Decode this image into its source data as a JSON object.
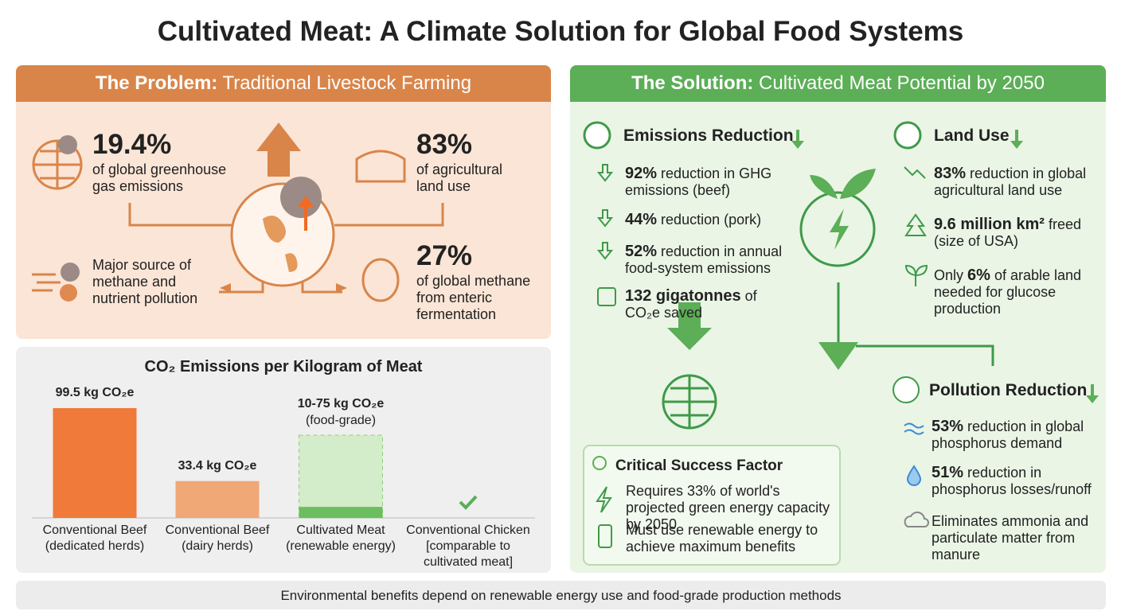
{
  "title": "Cultivated Meat: A Climate Solution for Global Food Systems",
  "problem": {
    "heading_bold": "The Problem:",
    "heading": "Traditional Livestock Farming",
    "stats": [
      {
        "value": "19.4%",
        "text": "of global greenhouse gas emissions"
      },
      {
        "value": "83%",
        "text": "of agricultural land use"
      },
      {
        "text": "Major source of methane and nutrient pollution"
      },
      {
        "value": "27%",
        "text": "of global methane from enteric fermentation"
      }
    ]
  },
  "chart_data": {
    "type": "bar",
    "title": "CO₂ Emissions per Kilogram of Meat",
    "categories": [
      "Conventional Beef (dedicated herds)",
      "Conventional Beef (dairy herds)",
      "Cultivated Meat (renewable energy)",
      "Conventional Chicken [comparable to cultivated meat]"
    ],
    "values": [
      99.5,
      33.4,
      [
        10,
        75
      ],
      null
    ],
    "value_labels": [
      "99.5 kg CO₂e",
      "33.4 kg CO₂e",
      "10-75 kg CO₂e",
      null
    ],
    "notes": [
      null,
      null,
      "(food-grade)",
      null
    ],
    "colors": [
      "#f07a3a",
      "#f0a877",
      "#6cbd5f",
      "#5cae57"
    ]
  },
  "solution": {
    "heading_bold": "The Solution:",
    "heading": "Cultivated Meat Potential by 2050",
    "emissions": {
      "title": "Emissions Reduction",
      "items": [
        {
          "bold": "92%",
          "text": "reduction in GHG emissions (beef)"
        },
        {
          "bold": "44%",
          "text": "reduction (pork)"
        },
        {
          "bold": "52%",
          "text": "reduction in annual food-system emissions"
        },
        {
          "bold": "132 gigatonnes",
          "text": "of CO₂e saved"
        }
      ]
    },
    "land": {
      "title": "Land Use",
      "items": [
        {
          "bold": "83%",
          "text": "reduction in global agricultural land use"
        },
        {
          "bold": "9.6 million km²",
          "text": "freed (size of USA)"
        },
        {
          "pre": "Only",
          "bold": "6%",
          "text": "of arable land needed for glucose production"
        }
      ]
    },
    "pollution": {
      "title": "Pollution Reduction",
      "items": [
        {
          "bold": "53%",
          "text": "reduction in global phosphorus demand"
        },
        {
          "bold": "51%",
          "text": "reduction in phosphorus losses/runoff"
        },
        {
          "text": "Eliminates ammonia and particulate matter from manure"
        }
      ]
    },
    "critical": {
      "title": "Critical Success Factor",
      "items": [
        "Requires 33% of world's projected green energy capacity by 2050",
        "Must use renewable energy to achieve maximum benefits"
      ]
    }
  },
  "footer": "Environmental benefits depend on renewable energy use and food-grade production methods"
}
